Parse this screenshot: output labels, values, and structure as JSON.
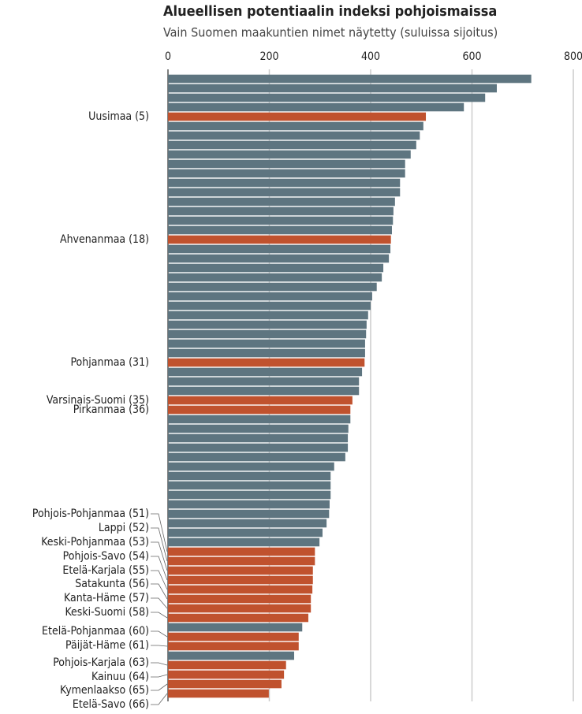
{
  "chart_data": {
    "type": "hbar",
    "title": "Alueellisen potentiaalin indeksi pohjoismaissa",
    "subtitle": "Vain Suomen maakuntien nimet näytetty (suluissa sijoitus)",
    "categories": [
      null,
      null,
      null,
      null,
      "Uusimaa (5)",
      null,
      null,
      null,
      null,
      null,
      null,
      null,
      null,
      null,
      null,
      null,
      null,
      "Ahvenanmaa (18)",
      null,
      null,
      null,
      null,
      null,
      null,
      null,
      null,
      null,
      null,
      null,
      null,
      "Pohjanmaa (31)",
      null,
      null,
      null,
      "Varsinais-Suomi (35)",
      "Pirkanmaa (36)",
      null,
      null,
      null,
      null,
      null,
      null,
      null,
      null,
      null,
      null,
      null,
      null,
      null,
      null,
      "Pohjois-Pohjanmaa (51)",
      "Lappi (52)",
      "Keski-Pohjanmaa (53)",
      "Pohjois-Savo (54)",
      "Etelä-Karjala (55)",
      "Satakunta (56)",
      "Kanta-Häme (57)",
      "Keski-Suomi (58)",
      null,
      "Etelä-Pohjanmaa (60)",
      "Päijät-Häme (61)",
      null,
      "Pohjois-Karjala (63)",
      "Kainuu (64)",
      "Kymenlaakso (65)",
      "Etelä-Savo (66)"
    ],
    "values": [
      717,
      649,
      626,
      584,
      509,
      504,
      497,
      490,
      479,
      468,
      468,
      458,
      458,
      448,
      445,
      444,
      442,
      440,
      439,
      436,
      425,
      422,
      412,
      403,
      400,
      395,
      392,
      391,
      389,
      389,
      388,
      383,
      377,
      377,
      364,
      360,
      360,
      356,
      355,
      355,
      350,
      328,
      321,
      321,
      321,
      319,
      318,
      313,
      305,
      299,
      290,
      290,
      286,
      286,
      285,
      282,
      282,
      277,
      265,
      258,
      258,
      249,
      233,
      229,
      224,
      199
    ],
    "color": "#5e7580",
    "highlight_color": "#c0522e",
    "xlim": [
      0,
      800
    ],
    "xticks": [
      0,
      200,
      400,
      600,
      800
    ],
    "grid": true
  }
}
